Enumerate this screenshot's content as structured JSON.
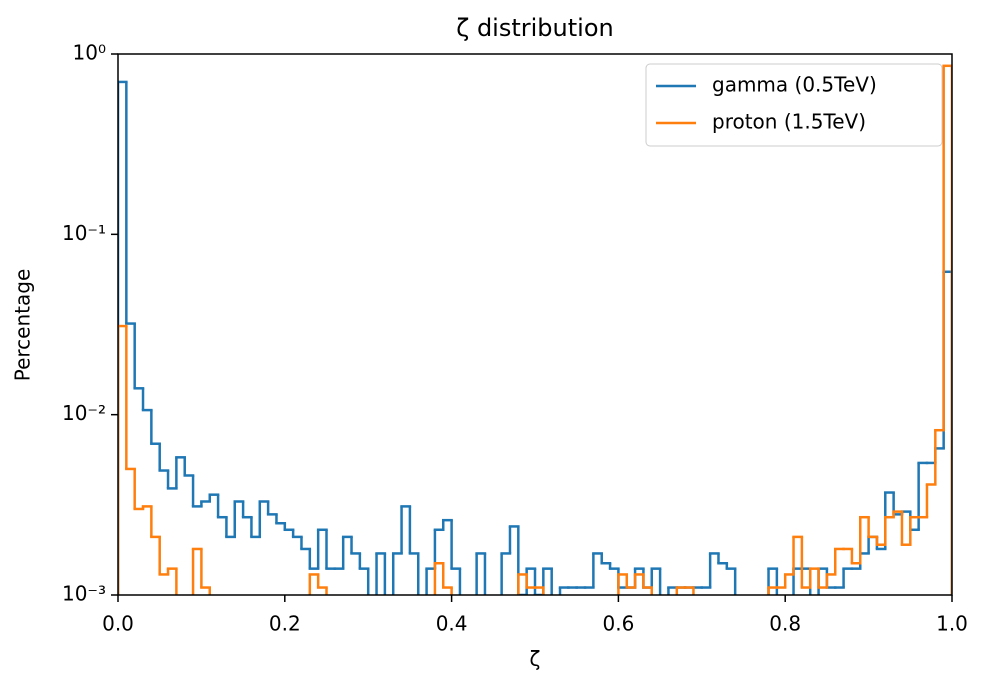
{
  "chart_data": {
    "type": "histogram",
    "title": "ζ distribution",
    "xlabel": "ζ",
    "ylabel": "Percentage",
    "log_y": true,
    "legend": "upper right",
    "xlim": [
      0,
      1
    ],
    "xticks": [
      {
        "value": 0,
        "label": "0.0"
      },
      0.2,
      0.4,
      0.6,
      0.8,
      {
        "value": 1,
        "label": "1.0"
      }
    ],
    "ylim": [
      0.001,
      1
    ],
    "yticks": [
      {
        "value": 0.001,
        "label": "10⁻³"
      },
      {
        "value": 0.01,
        "label": "10⁻²"
      },
      {
        "value": 0.1,
        "label": "10⁻¹"
      },
      {
        "value": 1,
        "label": "10⁰"
      }
    ],
    "bins": [
      0,
      0.01,
      0.02,
      0.03,
      0.04,
      0.05,
      0.06,
      0.07,
      0.08,
      0.09,
      0.1,
      0.11,
      0.12,
      0.13,
      0.14,
      0.15,
      0.16,
      0.17,
      0.18,
      0.19,
      0.2,
      0.21,
      0.22,
      0.23,
      0.24,
      0.25,
      0.26,
      0.27,
      0.28,
      0.29,
      0.3,
      0.31,
      0.32,
      0.33,
      0.34,
      0.35,
      0.36,
      0.37,
      0.38,
      0.39,
      0.4,
      0.41,
      0.42,
      0.43,
      0.44,
      0.45,
      0.46,
      0.47,
      0.48,
      0.49,
      0.5,
      0.51,
      0.52,
      0.53,
      0.54,
      0.55,
      0.56,
      0.57,
      0.58,
      0.59,
      0.6,
      0.61,
      0.62,
      0.63,
      0.64,
      0.65,
      0.66,
      0.67,
      0.68,
      0.69,
      0.7,
      0.71,
      0.72,
      0.73,
      0.74,
      0.75,
      0.76,
      0.77,
      0.78,
      0.79,
      0.8,
      0.81,
      0.82,
      0.83,
      0.84,
      0.85,
      0.86,
      0.87,
      0.88,
      0.89,
      0.9,
      0.91,
      0.92,
      0.93,
      0.94,
      0.95,
      0.96,
      0.97,
      0.98,
      0.99,
      1
    ],
    "series": [
      {
        "name": "gamma (0.5TeV)",
        "color": "#1f77b4",
        "values": [
          0.7,
          0.032,
          0.014,
          0.0106,
          0.0069,
          0.0049,
          0.0039,
          0.0058,
          0.0046,
          0.0031,
          0.0033,
          0.0036,
          0.0027,
          0.0021,
          0.0033,
          0.0027,
          0.0021,
          0.0033,
          0.0028,
          0.0025,
          0.0023,
          0.0021,
          0.0018,
          0.0014,
          0.0023,
          0.0014,
          0.0014,
          0.0021,
          0.0017,
          0.0014,
          0,
          0.0017,
          0,
          0.0017,
          0.0031,
          0.0017,
          0,
          0.0014,
          0.0023,
          0.0026,
          0.0014,
          0,
          0,
          0.0017,
          0,
          0,
          0.0017,
          0.0024,
          0.001,
          0.0014,
          0.001,
          0.0014,
          0,
          0.0011,
          0.0011,
          0.0011,
          0.0011,
          0.0017,
          0.0015,
          0.0014,
          0.0011,
          0.0011,
          0.0014,
          0.0011,
          0.0014,
          0,
          0.0011,
          0.0011,
          0.0011,
          0.0011,
          0.0011,
          0.0017,
          0.0015,
          0.0014,
          0,
          0,
          0,
          0,
          0.0014,
          0,
          0,
          0.0014,
          0.0014,
          0,
          0.0014,
          0.0011,
          0.0011,
          0.0014,
          0.0014,
          0.0017,
          0.0021,
          0.0018,
          0.0037,
          0.0028,
          0.0029,
          0.0023,
          0.0054,
          0.0054,
          0.0065,
          0.062
        ]
      },
      {
        "name": "proton (1.5TeV)",
        "color": "#ff7f0e",
        "values": [
          0.031,
          0.005,
          0.003,
          0.0031,
          0.0021,
          0.0013,
          0.0014,
          0,
          0,
          0.0018,
          0.0011,
          0,
          0,
          0,
          0,
          0,
          0,
          0,
          0,
          0,
          0,
          0,
          0,
          0.0013,
          0.0011,
          0,
          0,
          0,
          0,
          0,
          0,
          0,
          0,
          0,
          0,
          0,
          0,
          0,
          0.0015,
          0.0011,
          0,
          0,
          0,
          0,
          0,
          0,
          0,
          0,
          0.0013,
          0.0011,
          0.0011,
          0,
          0,
          0,
          0,
          0,
          0,
          0,
          0,
          0,
          0.0013,
          0.0011,
          0.0013,
          0.0011,
          0,
          0,
          0,
          0.0011,
          0.0011,
          0,
          0,
          0,
          0,
          0,
          0,
          0,
          0,
          0,
          0.0011,
          0.0011,
          0.0013,
          0.0021,
          0.0011,
          0.0014,
          0.0011,
          0.0013,
          0.0018,
          0.0018,
          0.0015,
          0.0027,
          0.0021,
          0.0019,
          0.0027,
          0.0029,
          0.0019,
          0.0027,
          0.0027,
          0.0041,
          0.0082,
          0.86
        ]
      }
    ]
  }
}
